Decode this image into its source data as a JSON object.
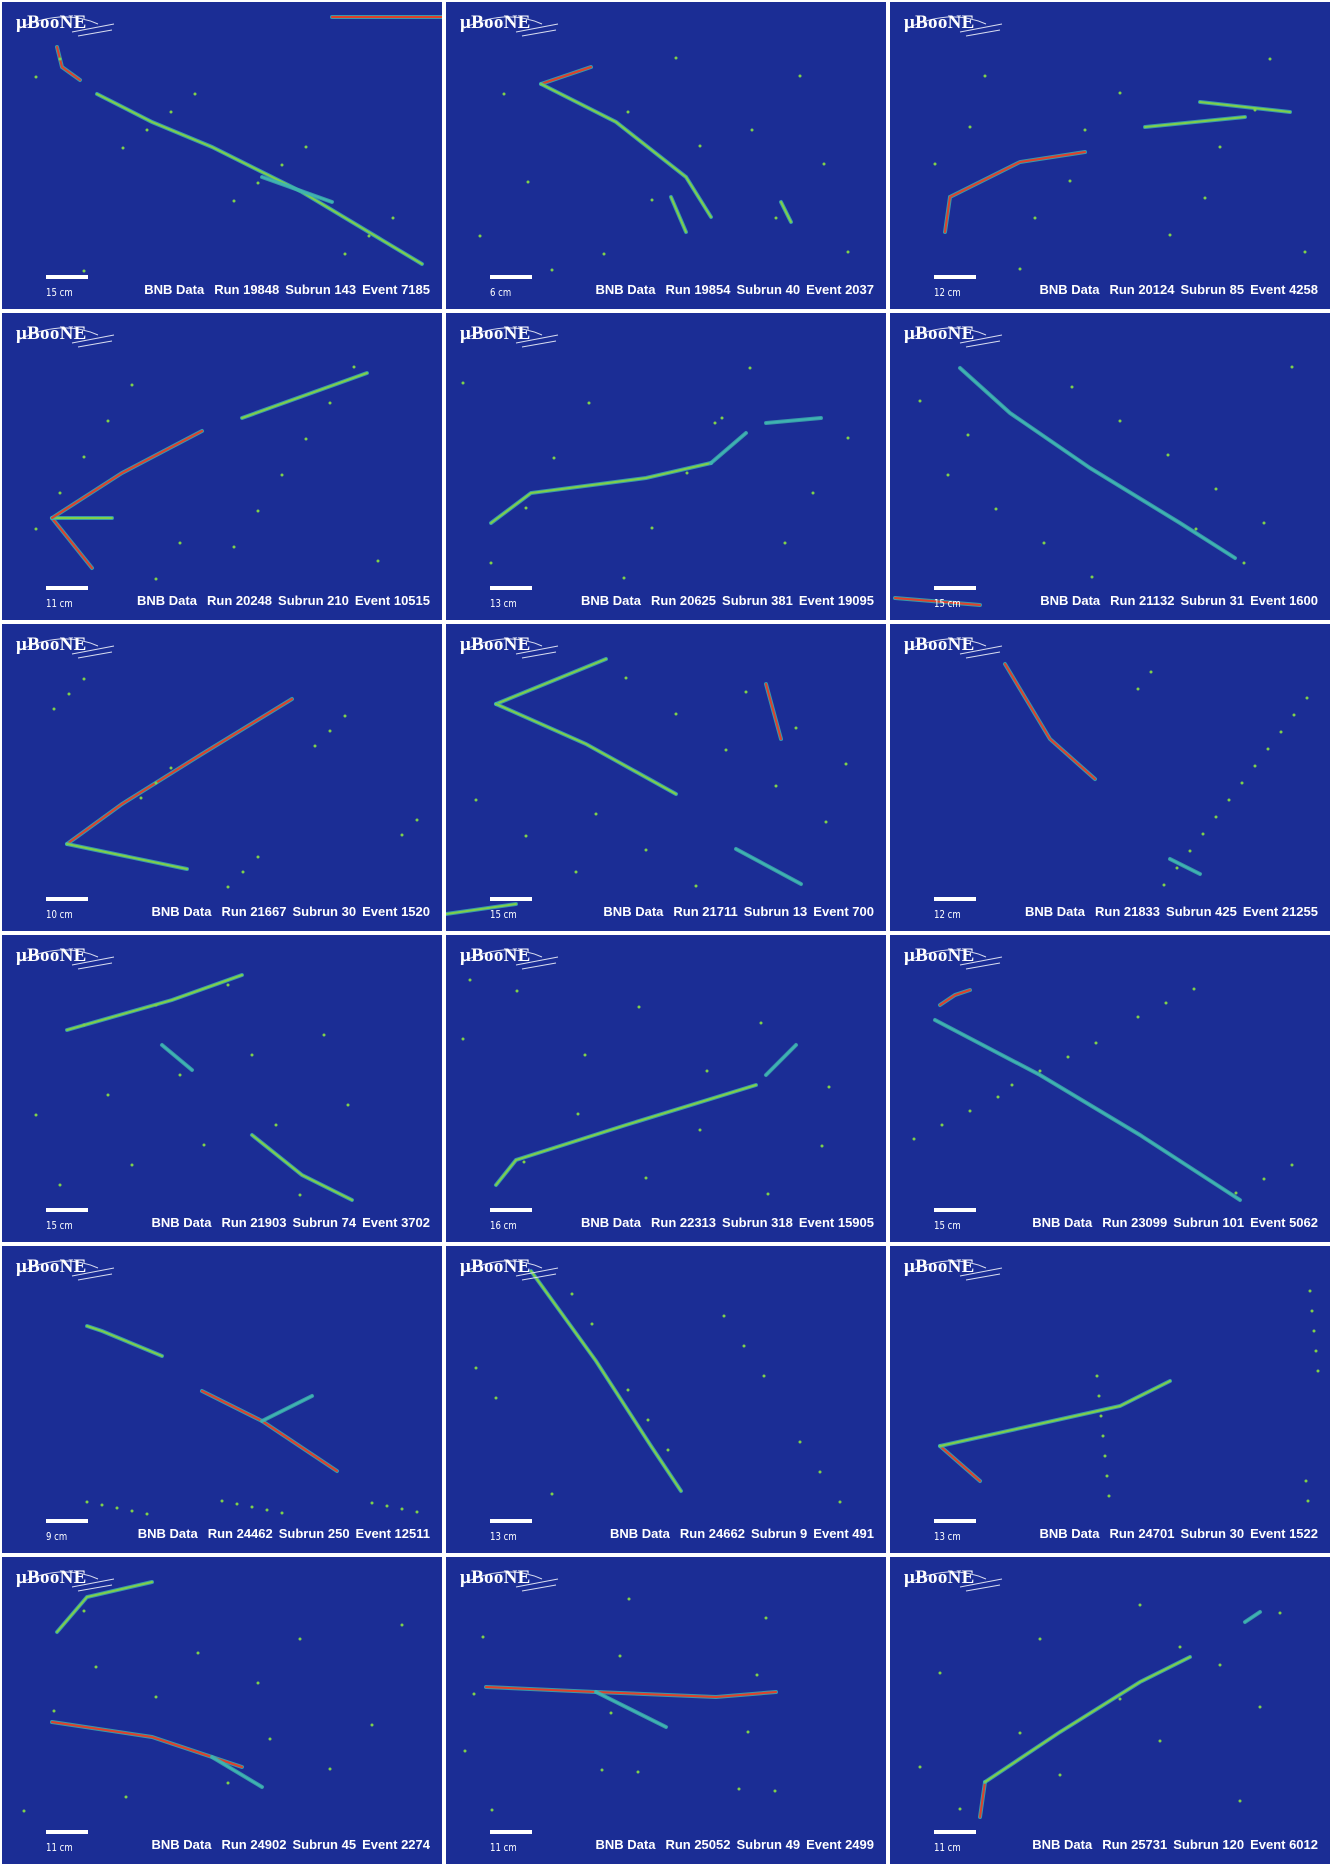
{
  "logo_text": "μBooNE",
  "panels": [
    {
      "scale": "15 cm",
      "source": "BNB Data",
      "run": "Run 19848",
      "subrun": "Subrun 143",
      "event": "Event 7185"
    },
    {
      "scale": "6 cm",
      "source": "BNB Data",
      "run": "Run 19854",
      "subrun": "Subrun 40",
      "event": "Event 2037"
    },
    {
      "scale": "12 cm",
      "source": "BNB Data",
      "run": "Run 20124",
      "subrun": "Subrun 85",
      "event": "Event 4258"
    },
    {
      "scale": "11 cm",
      "source": "BNB Data",
      "run": "Run 20248",
      "subrun": "Subrun 210",
      "event": "Event 10515"
    },
    {
      "scale": "13 cm",
      "source": "BNB Data",
      "run": "Run 20625",
      "subrun": "Subrun 381",
      "event": "Event 19095"
    },
    {
      "scale": "15 cm",
      "source": "BNB Data",
      "run": "Run 21132",
      "subrun": "Subrun 31",
      "event": "Event 1600"
    },
    {
      "scale": "10 cm",
      "source": "BNB Data",
      "run": "Run 21667",
      "subrun": "Subrun 30",
      "event": "Event 1520"
    },
    {
      "scale": "15 cm",
      "source": "BNB Data",
      "run": "Run 21711",
      "subrun": "Subrun 13",
      "event": "Event 700"
    },
    {
      "scale": "12 cm",
      "source": "BNB Data",
      "run": "Run 21833",
      "subrun": "Subrun 425",
      "event": "Event 21255"
    },
    {
      "scale": "15 cm",
      "source": "BNB Data",
      "run": "Run 21903",
      "subrun": "Subrun 74",
      "event": "Event 3702"
    },
    {
      "scale": "16 cm",
      "source": "BNB Data",
      "run": "Run 22313",
      "subrun": "Subrun 318",
      "event": "Event 15905"
    },
    {
      "scale": "15 cm",
      "source": "BNB Data",
      "run": "Run 23099",
      "subrun": "Subrun 101",
      "event": "Event 5062"
    },
    {
      "scale": "9 cm",
      "source": "BNB Data",
      "run": "Run 24462",
      "subrun": "Subrun 250",
      "event": "Event 12511"
    },
    {
      "scale": "13 cm",
      "source": "BNB Data",
      "run": "Run 24662",
      "subrun": "Subrun 9",
      "event": "Event 491"
    },
    {
      "scale": "13 cm",
      "source": "BNB Data",
      "run": "Run 24701",
      "subrun": "Subrun 30",
      "event": "Event 1522"
    },
    {
      "scale": "11 cm",
      "source": "BNB Data",
      "run": "Run 24902",
      "subrun": "Subrun 45",
      "event": "Event 2274"
    },
    {
      "scale": "11 cm",
      "source": "BNB Data",
      "run": "Run 25052",
      "subrun": "Subrun 49",
      "event": "Event 2499"
    },
    {
      "scale": "11 cm",
      "source": "BNB Data",
      "run": "Run 25731",
      "subrun": "Subrun 120",
      "event": "Event 6012"
    }
  ],
  "colors": {
    "background": "#1b2d95",
    "track_low": "#3fb4b0",
    "track_mid": "#7fd04a",
    "track_high": "#e0402a"
  }
}
